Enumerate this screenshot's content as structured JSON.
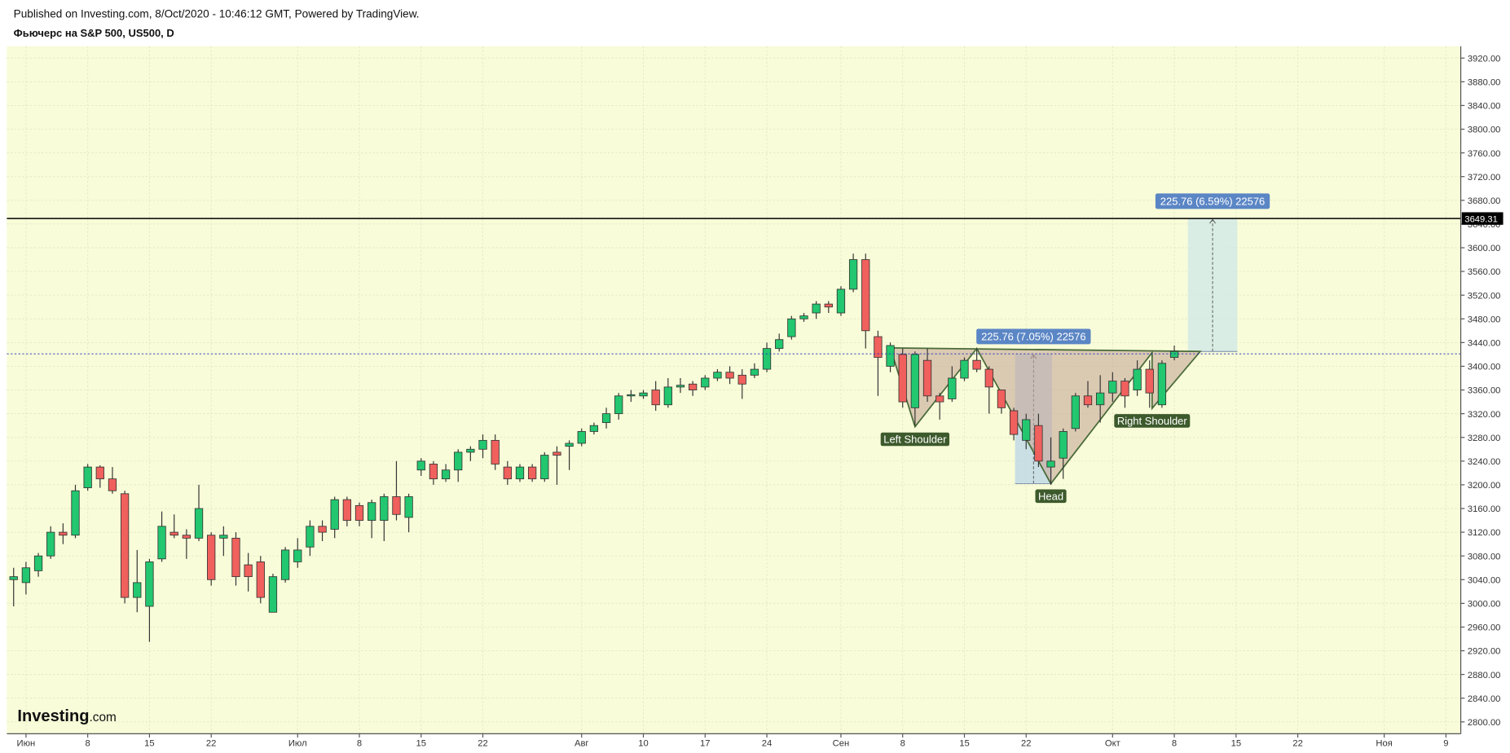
{
  "chart_data": {
    "type": "candlestick",
    "header": "Published on Investing.com, 8/Oct/2020 - 10:46:12 GMT, Powered by TradingView.",
    "title": "Фьючерс на S&P 500, US500, D",
    "logo": {
      "brand": "Investing",
      "suffix": ".com"
    },
    "up_color": "#22c76f",
    "down_color": "#f0605d",
    "grid": true,
    "series": {
      "open": [
        3040,
        3035,
        3055,
        3080,
        3120,
        3115,
        3195,
        3230,
        3210,
        3185,
        3010,
        2995,
        3075,
        3120,
        3115,
        3110,
        3115,
        3110,
        3110,
        3065,
        3070,
        2985,
        3040,
        3070,
        3095,
        3130,
        3125,
        3175,
        3165,
        3140,
        3140,
        3180,
        3145,
        3225,
        3235,
        3210,
        3225,
        3255,
        3260,
        3275,
        3230,
        3210,
        3230,
        3210,
        3255,
        3265,
        3270,
        3290,
        3305,
        3320,
        3350,
        3350,
        3360,
        3335,
        3365,
        3370,
        3365,
        3380,
        3390,
        3385,
        3385,
        3395,
        3430,
        3450,
        3480,
        3490,
        3505,
        3490,
        3530,
        3580,
        3450,
        3400,
        3420,
        3330,
        3410,
        3350,
        3345,
        3380,
        3410,
        3395,
        3360,
        3325,
        3275,
        3300,
        3230,
        3245,
        3295,
        3350,
        3335,
        3355,
        3375,
        3360,
        3395,
        3335,
        3415
      ],
      "high": [
        3060,
        3070,
        3085,
        3130,
        3135,
        3200,
        3235,
        3233,
        3230,
        3190,
        3090,
        3075,
        3155,
        3150,
        3125,
        3200,
        3120,
        3130,
        3120,
        3085,
        3080,
        3050,
        3095,
        3110,
        3140,
        3140,
        3180,
        3180,
        3170,
        3175,
        3185,
        3240,
        3185,
        3245,
        3240,
        3235,
        3260,
        3265,
        3285,
        3285,
        3240,
        3235,
        3235,
        3255,
        3265,
        3275,
        3295,
        3305,
        3330,
        3355,
        3360,
        3360,
        3375,
        3380,
        3380,
        3375,
        3385,
        3395,
        3400,
        3395,
        3405,
        3440,
        3455,
        3485,
        3490,
        3510,
        3510,
        3535,
        3590,
        3590,
        3460,
        3440,
        3430,
        3425,
        3430,
        3355,
        3400,
        3415,
        3430,
        3400,
        3360,
        3330,
        3320,
        3320,
        3280,
        3295,
        3355,
        3375,
        3385,
        3390,
        3380,
        3410,
        3410,
        3410,
        3435
      ],
      "low": [
        2995,
        3015,
        3045,
        3075,
        3100,
        3110,
        3190,
        3195,
        3185,
        3000,
        2985,
        2935,
        3070,
        3110,
        3075,
        3105,
        3030,
        3080,
        3030,
        3020,
        3000,
        2985,
        3035,
        3060,
        3080,
        3105,
        3110,
        3130,
        3130,
        3110,
        3105,
        3140,
        3120,
        3215,
        3200,
        3205,
        3205,
        3240,
        3245,
        3225,
        3200,
        3205,
        3205,
        3205,
        3200,
        3225,
        3265,
        3285,
        3295,
        3310,
        3340,
        3345,
        3325,
        3330,
        3355,
        3350,
        3360,
        3375,
        3370,
        3345,
        3380,
        3390,
        3425,
        3445,
        3475,
        3480,
        3490,
        3485,
        3525,
        3430,
        3350,
        3390,
        3330,
        3300,
        3340,
        3310,
        3340,
        3375,
        3390,
        3320,
        3320,
        3275,
        3260,
        3230,
        3200,
        3210,
        3290,
        3330,
        3305,
        3340,
        3330,
        3350,
        3330,
        3330,
        3410
      ],
      "close": [
        3045,
        3060,
        3080,
        3120,
        3115,
        3190,
        3230,
        3210,
        3190,
        3010,
        3035,
        3070,
        3130,
        3115,
        3110,
        3160,
        3040,
        3115,
        3045,
        3045,
        3010,
        3045,
        3090,
        3090,
        3130,
        3120,
        3175,
        3140,
        3140,
        3170,
        3180,
        3150,
        3180,
        3240,
        3210,
        3225,
        3255,
        3260,
        3275,
        3235,
        3210,
        3230,
        3210,
        3250,
        3250,
        3270,
        3290,
        3300,
        3320,
        3350,
        3352,
        3355,
        3335,
        3365,
        3368,
        3360,
        3380,
        3390,
        3380,
        3370,
        3395,
        3430,
        3445,
        3480,
        3485,
        3505,
        3500,
        3530,
        3580,
        3460,
        3415,
        3435,
        3340,
        3420,
        3350,
        3340,
        3380,
        3410,
        3395,
        3365,
        3330,
        3285,
        3310,
        3240,
        3240,
        3290,
        3350,
        3335,
        3355,
        3375,
        3350,
        3395,
        3355,
        3405,
        3425
      ]
    },
    "xlim": [
      -0.55,
      117.2
    ],
    "xticks": [
      {
        "value": 1,
        "label": "Июн"
      },
      {
        "value": 6,
        "label": "8"
      },
      {
        "value": 11,
        "label": "15"
      },
      {
        "value": 16,
        "label": "22"
      },
      {
        "value": 23,
        "label": "Июл"
      },
      {
        "value": 28,
        "label": "8"
      },
      {
        "value": 33,
        "label": "15"
      },
      {
        "value": 38,
        "label": "22"
      },
      {
        "value": 46,
        "label": "Авг"
      },
      {
        "value": 51,
        "label": "10"
      },
      {
        "value": 56,
        "label": "17"
      },
      {
        "value": 61,
        "label": "24"
      },
      {
        "value": 67,
        "label": "Сен"
      },
      {
        "value": 72,
        "label": "8"
      },
      {
        "value": 77,
        "label": "15"
      },
      {
        "value": 82,
        "label": "22"
      },
      {
        "value": 89,
        "label": "Окт"
      },
      {
        "value": 94,
        "label": "8"
      },
      {
        "value": 99,
        "label": "15"
      },
      {
        "value": 104,
        "label": "22"
      },
      {
        "value": 111,
        "label": "Ноя"
      },
      {
        "value": 116,
        "label": "9"
      }
    ],
    "ylim": [
      2780,
      3940
    ],
    "yticks": [
      {
        "value": 2800,
        "label": "2800.00"
      },
      {
        "value": 2840,
        "label": "2840.00"
      },
      {
        "value": 2880,
        "label": "2880.00"
      },
      {
        "value": 2920,
        "label": "2920.00"
      },
      {
        "value": 2960,
        "label": "2960.00"
      },
      {
        "value": 3000,
        "label": "3000.00"
      },
      {
        "value": 3040,
        "label": "3040.00"
      },
      {
        "value": 3080,
        "label": "3080.00"
      },
      {
        "value": 3120,
        "label": "3120.00"
      },
      {
        "value": 3160,
        "label": "3160.00"
      },
      {
        "value": 3200,
        "label": "3200.00"
      },
      {
        "value": 3240,
        "label": "3240.00"
      },
      {
        "value": 3280,
        "label": "3280.00"
      },
      {
        "value": 3320,
        "label": "3320.00"
      },
      {
        "value": 3360,
        "label": "3360.00"
      },
      {
        "value": 3400,
        "label": "3400.00"
      },
      {
        "value": 3440,
        "label": "3440.00"
      },
      {
        "value": 3480,
        "label": "3480.00"
      },
      {
        "value": 3520,
        "label": "3520.00"
      },
      {
        "value": 3560,
        "label": "3560.00"
      },
      {
        "value": 3600,
        "label": "3600.00"
      },
      {
        "value": 3640,
        "label": "3640.00"
      },
      {
        "value": 3680,
        "label": "3680.00"
      },
      {
        "value": 3720,
        "label": "3720.00"
      },
      {
        "value": 3760,
        "label": "3760.00"
      },
      {
        "value": 3800,
        "label": "3800.00"
      },
      {
        "value": 3840,
        "label": "3840.00"
      },
      {
        "value": 3880,
        "label": "3880.00"
      },
      {
        "value": 3920,
        "label": "3920.00"
      }
    ],
    "levels": [
      {
        "value": 3649.31,
        "label": "3649.31",
        "color": "#000000",
        "dashed": false
      },
      {
        "value": 3421,
        "color": "#2233bb",
        "dashed": true
      }
    ],
    "pattern": {
      "color": "#4a6b3a",
      "fill": "#c8a89a",
      "points": [
        {
          "x": 71,
          "y": 3431
        },
        {
          "x": 73,
          "y": 3298,
          "label": "Left Shoulder"
        },
        {
          "x": 78,
          "y": 3430
        },
        {
          "x": 84,
          "y": 3202,
          "label": "Head"
        },
        {
          "x": 92.2,
          "y": 3423
        },
        {
          "x": 92.2,
          "y": 3329,
          "label": "Right Shoulder"
        },
        {
          "x": 96.1,
          "y": 3425
        }
      ]
    },
    "measures": [
      {
        "label": "225.76 (7.05%) 22576",
        "x": [
          81.1,
          84.1
        ],
        "y": [
          3202,
          3421
        ],
        "fill": "#b9d6e8"
      },
      {
        "label": "225.76 (6.59%) 22576",
        "x": [
          95.1,
          99.1
        ],
        "y": [
          3425,
          3649.31
        ],
        "fill": "#cfe8e8"
      }
    ]
  }
}
